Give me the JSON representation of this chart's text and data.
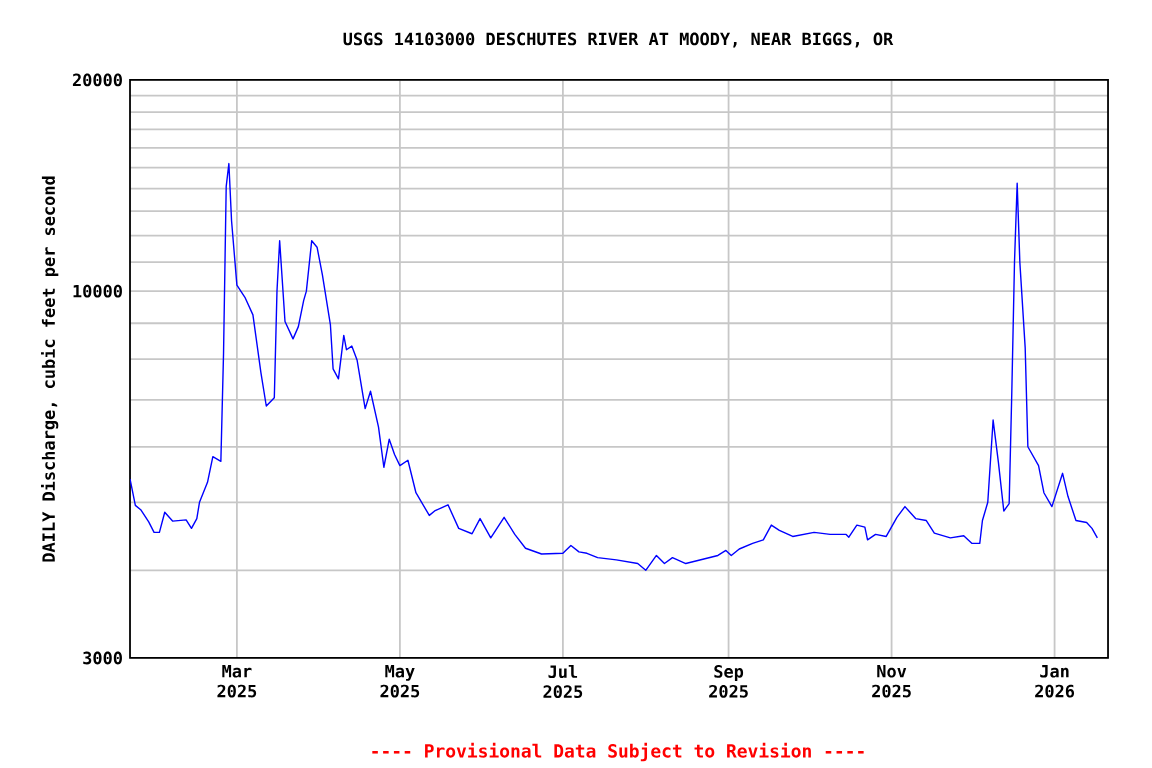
{
  "chart_data": {
    "type": "line",
    "title": "USGS 14103000 DESCHUTES RIVER AT MOODY, NEAR BIGGS, OR",
    "ylabel": "DAILY Discharge, cubic feet per second",
    "annotations": [
      "---- Provisional Data Subject to Revision ----"
    ],
    "log": "y",
    "grid": true,
    "marker": "none",
    "line_style": "solid",
    "xlim": [
      "2025-01-20",
      "2026-01-21"
    ],
    "xticks": [
      {
        "value": "2025-03-01",
        "label": "Mar 2025"
      },
      {
        "value": "2025-05-01",
        "label": "May 2025"
      },
      {
        "value": "2025-07-01",
        "label": "Jul 2025"
      },
      {
        "value": "2025-09-01",
        "label": "Sep 2025"
      },
      {
        "value": "2025-11-01",
        "label": "Nov 2025"
      },
      {
        "value": "2026-01-01",
        "label": "Jan 2026"
      }
    ],
    "ylim": [
      3000,
      20000
    ],
    "yticks": [
      3000,
      {
        "value": 4000,
        "label": null
      },
      {
        "value": 5000,
        "label": null
      },
      {
        "value": 6000,
        "label": null
      },
      {
        "value": 7000,
        "label": null
      },
      {
        "value": 8000,
        "label": null
      },
      {
        "value": 9000,
        "label": null
      },
      10000,
      {
        "value": 11000,
        "label": null
      },
      {
        "value": 12000,
        "label": null
      },
      {
        "value": 13000,
        "label": null
      },
      {
        "value": 14000,
        "label": null
      },
      {
        "value": 15000,
        "label": null
      },
      {
        "value": 16000,
        "label": null
      },
      {
        "value": 17000,
        "label": null
      },
      {
        "value": 18000,
        "label": null
      },
      {
        "value": 19000,
        "label": null
      },
      20000
    ],
    "series": [
      {
        "color": "#0000ff",
        "x": [
          "2025-01-20",
          "2025-01-22",
          "2025-01-24",
          "2025-01-27",
          "2025-01-29",
          "2025-01-31",
          "2025-02-02",
          "2025-02-05",
          "2025-02-10",
          "2025-02-12",
          "2025-02-14",
          "2025-02-15",
          "2025-02-18",
          "2025-02-20",
          "2025-02-23",
          "2025-02-24",
          "2025-02-25",
          "2025-02-26",
          "2025-02-27",
          "2025-03-01",
          "2025-03-04",
          "2025-03-07",
          "2025-03-10",
          "2025-03-12",
          "2025-03-15",
          "2025-03-16",
          "2025-03-17",
          "2025-03-19",
          "2025-03-22",
          "2025-03-24",
          "2025-03-26",
          "2025-03-27",
          "2025-03-29",
          "2025-03-31",
          "2025-04-02",
          "2025-04-05",
          "2025-04-06",
          "2025-04-08",
          "2025-04-10",
          "2025-04-11",
          "2025-04-13",
          "2025-04-15",
          "2025-04-18",
          "2025-04-20",
          "2025-04-23",
          "2025-04-25",
          "2025-04-27",
          "2025-04-29",
          "2025-05-01",
          "2025-05-04",
          "2025-05-07",
          "2025-05-12",
          "2025-05-14",
          "2025-05-19",
          "2025-05-23",
          "2025-05-28",
          "2025-05-31",
          "2025-06-04",
          "2025-06-09",
          "2025-06-13",
          "2025-06-17",
          "2025-06-23",
          "2025-07-01",
          "2025-07-04",
          "2025-07-07",
          "2025-07-10",
          "2025-07-14",
          "2025-07-21",
          "2025-07-29",
          "2025-08-01",
          "2025-08-05",
          "2025-08-08",
          "2025-08-11",
          "2025-08-16",
          "2025-08-28",
          "2025-08-31",
          "2025-09-02",
          "2025-09-05",
          "2025-09-10",
          "2025-09-14",
          "2025-09-17",
          "2025-09-20",
          "2025-09-25",
          "2025-10-03",
          "2025-10-09",
          "2025-10-15",
          "2025-10-16",
          "2025-10-19",
          "2025-10-22",
          "2025-10-23",
          "2025-10-26",
          "2025-10-30",
          "2025-11-03",
          "2025-11-06",
          "2025-11-10",
          "2025-11-14",
          "2025-11-17",
          "2025-11-23",
          "2025-11-28",
          "2025-12-01",
          "2025-12-04",
          "2025-12-05",
          "2025-12-07",
          "2025-12-09",
          "2025-12-11",
          "2025-12-13",
          "2025-12-15",
          "2025-12-16",
          "2025-12-17",
          "2025-12-18",
          "2025-12-19",
          "2025-12-21",
          "2025-12-22",
          "2025-12-26",
          "2025-12-28",
          "2025-12-31",
          "2026-01-04",
          "2026-01-06",
          "2026-01-09",
          "2026-01-13",
          "2026-01-15",
          "2026-01-17"
        ],
        "values": [
          5400,
          4950,
          4880,
          4690,
          4530,
          4530,
          4840,
          4700,
          4720,
          4590,
          4740,
          5000,
          5340,
          5810,
          5720,
          8150,
          14100,
          15200,
          12600,
          10200,
          9800,
          9250,
          7650,
          6860,
          7050,
          10000,
          11800,
          9050,
          8550,
          8900,
          9700,
          10000,
          11800,
          11550,
          10550,
          8950,
          7750,
          7500,
          8650,
          8250,
          8350,
          7970,
          6800,
          7200,
          6400,
          5610,
          6150,
          5850,
          5640,
          5740,
          5160,
          4790,
          4860,
          4960,
          4590,
          4510,
          4740,
          4450,
          4760,
          4500,
          4300,
          4220,
          4230,
          4340,
          4250,
          4230,
          4170,
          4140,
          4090,
          4000,
          4200,
          4090,
          4170,
          4090,
          4200,
          4270,
          4200,
          4290,
          4370,
          4420,
          4640,
          4560,
          4470,
          4530,
          4500,
          4500,
          4460,
          4640,
          4610,
          4420,
          4500,
          4470,
          4760,
          4930,
          4740,
          4710,
          4520,
          4450,
          4480,
          4370,
          4370,
          4710,
          5000,
          6550,
          5690,
          4860,
          4980,
          7200,
          11000,
          14250,
          11000,
          8300,
          6000,
          5640,
          5160,
          4930,
          5500,
          5100,
          4710,
          4680,
          4590,
          4450
        ]
      }
    ]
  }
}
